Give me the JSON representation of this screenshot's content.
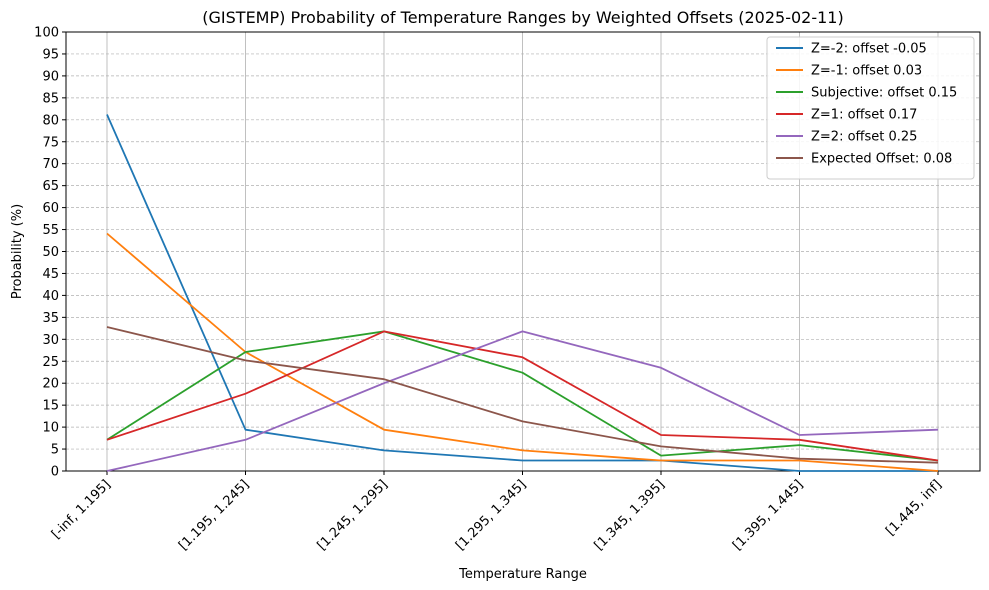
{
  "chart_data": {
    "type": "line",
    "title": "(GISTEMP) Probability of Temperature Ranges by Weighted Offsets (2025-02-11)",
    "xlabel": "Temperature Range",
    "ylabel": "Probability (%)",
    "ylim": [
      0,
      100
    ],
    "yticks": [
      0,
      5,
      10,
      15,
      20,
      25,
      30,
      35,
      40,
      45,
      50,
      55,
      60,
      65,
      70,
      75,
      80,
      85,
      90,
      95,
      100
    ],
    "grid": true,
    "legend_position": "top-right",
    "categories": [
      "[-inf, 1.195]",
      "[1.195, 1.245]",
      "[1.245, 1.295]",
      "[1.295, 1.345]",
      "[1.345, 1.395]",
      "[1.395, 1.445]",
      "[1.445, inf]"
    ],
    "series": [
      {
        "name": "Z=-2: offset -0.05",
        "color": "#1f77b4",
        "values": [
          81.2,
          9.4,
          4.7,
          2.4,
          2.4,
          0.0,
          0.0
        ]
      },
      {
        "name": "Z=-1: offset 0.03",
        "color": "#ff7f0e",
        "values": [
          54.1,
          27.1,
          9.4,
          4.7,
          2.4,
          2.4,
          0.0
        ]
      },
      {
        "name": "Subjective: offset 0.15",
        "color": "#2ca02c",
        "values": [
          7.1,
          27.1,
          31.8,
          22.4,
          3.5,
          5.9,
          2.4
        ]
      },
      {
        "name": "Z=1: offset 0.17",
        "color": "#d62728",
        "values": [
          7.1,
          17.6,
          31.8,
          25.9,
          8.2,
          7.1,
          2.4
        ]
      },
      {
        "name": "Z=2: offset 0.25",
        "color": "#9467bd",
        "values": [
          0.0,
          7.1,
          20.0,
          31.8,
          23.5,
          8.2,
          9.4
        ]
      },
      {
        "name": "Expected Offset: 0.08",
        "color": "#8c564b",
        "values": [
          32.8,
          25.2,
          20.9,
          11.3,
          5.6,
          2.8,
          1.9
        ]
      }
    ]
  }
}
